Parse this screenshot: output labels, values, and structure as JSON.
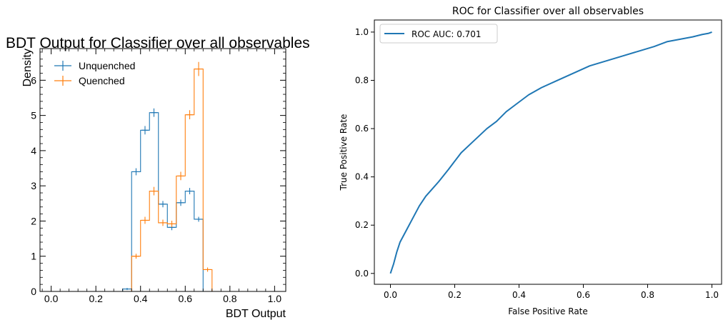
{
  "chart_data": [
    {
      "type": "histogram",
      "title": "BDT Output for Classifier over all observables",
      "xlabel": "BDT Output",
      "ylabel": "Density",
      "xlim": [
        -0.05,
        1.05
      ],
      "ylim": [
        0,
        6.9
      ],
      "xticks": [
        0.0,
        0.2,
        0.4,
        0.6,
        0.8,
        1.0
      ],
      "xtick_labels": [
        "0.0",
        "0.2",
        "0.4",
        "0.6",
        "0.8",
        "1.0"
      ],
      "yticks": [
        0,
        1,
        2,
        3,
        4,
        5,
        6
      ],
      "ytick_labels": [
        "0",
        "1",
        "2",
        "3",
        "4",
        "5",
        "6"
      ],
      "legend_position": "top-left",
      "bin_edges": [
        0.32,
        0.36,
        0.4,
        0.44,
        0.48,
        0.52,
        0.56,
        0.6,
        0.64,
        0.68,
        0.72
      ],
      "series": [
        {
          "name": "Unquenched",
          "color": "#1f77b4",
          "values": [
            0.07,
            3.4,
            4.58,
            5.08,
            2.48,
            1.82,
            2.52,
            2.85,
            2.05,
            0.0
          ],
          "errors": [
            0.03,
            0.1,
            0.12,
            0.12,
            0.09,
            0.08,
            0.09,
            0.09,
            0.07,
            0.0
          ]
        },
        {
          "name": "Quenched",
          "color": "#ff7f0e",
          "values": [
            0.0,
            1.0,
            2.02,
            2.85,
            1.95,
            1.92,
            3.28,
            5.02,
            6.32,
            0.62
          ],
          "errors": [
            0.0,
            0.07,
            0.1,
            0.12,
            0.09,
            0.09,
            0.12,
            0.13,
            0.2,
            0.06
          ]
        }
      ]
    },
    {
      "type": "line",
      "title": "ROC for Classifier over all observables",
      "xlabel": "False Positive Rate",
      "ylabel": "True Positive Rate",
      "xlim": [
        -0.05,
        1.03
      ],
      "ylim": [
        -0.045,
        1.05
      ],
      "xticks": [
        0.0,
        0.2,
        0.4,
        0.6,
        0.8,
        1.0
      ],
      "xtick_labels": [
        "0.0",
        "0.2",
        "0.4",
        "0.6",
        "0.8",
        "1.0"
      ],
      "yticks": [
        0.0,
        0.2,
        0.4,
        0.6,
        0.8,
        1.0
      ],
      "ytick_labels": [
        "0.0",
        "0.2",
        "0.4",
        "0.6",
        "0.8",
        "1.0"
      ],
      "legend_position": "top-left",
      "series": [
        {
          "name": "ROC AUC: 0.701",
          "color": "#1f77b4",
          "x": [
            0.0,
            0.01,
            0.02,
            0.03,
            0.05,
            0.07,
            0.09,
            0.11,
            0.13,
            0.15,
            0.18,
            0.22,
            0.26,
            0.3,
            0.33,
            0.36,
            0.39,
            0.43,
            0.47,
            0.52,
            0.57,
            0.62,
            0.67,
            0.72,
            0.77,
            0.82,
            0.86,
            0.9,
            0.94,
            0.97,
            0.99,
            1.0
          ],
          "y": [
            0.0,
            0.04,
            0.09,
            0.13,
            0.18,
            0.23,
            0.28,
            0.32,
            0.35,
            0.38,
            0.43,
            0.5,
            0.55,
            0.6,
            0.63,
            0.67,
            0.7,
            0.74,
            0.77,
            0.8,
            0.83,
            0.86,
            0.88,
            0.9,
            0.92,
            0.94,
            0.96,
            0.97,
            0.98,
            0.99,
            0.995,
            1.0
          ]
        }
      ]
    }
  ]
}
